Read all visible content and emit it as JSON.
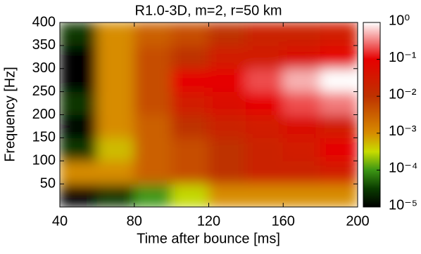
{
  "chart_data": {
    "type": "heatmap",
    "title": "R1.0-3D, m=2, r=50 km",
    "x_label": "Time after bounce [ms]",
    "y_label": "Frequency [Hz]",
    "x": [
      50,
      70,
      90,
      110,
      130,
      150,
      170,
      190
    ],
    "y": [
      25,
      75,
      125,
      175,
      225,
      275,
      325,
      375
    ],
    "z": [
      [
        1e-05,
        3e-05,
        0.0001,
        0.0003,
        0.001,
        0.001,
        0.001,
        0.001
      ],
      [
        0.001,
        0.001,
        0.003,
        0.005,
        0.01,
        0.02,
        0.02,
        0.03
      ],
      [
        3e-05,
        0.0005,
        0.003,
        0.005,
        0.01,
        0.02,
        0.03,
        0.1
      ],
      [
        1e-05,
        0.001,
        0.003,
        0.01,
        0.02,
        0.03,
        0.05,
        0.03
      ],
      [
        3e-05,
        0.001,
        0.005,
        0.03,
        0.05,
        0.1,
        0.2,
        0.3
      ],
      [
        1e-05,
        0.001,
        0.005,
        0.1,
        0.1,
        0.2,
        0.5,
        1
      ],
      [
        1e-05,
        0.001,
        0.005,
        0.01,
        0.03,
        0.03,
        0.05,
        0.1
      ],
      [
        3e-05,
        0.001,
        0.003,
        0.005,
        0.01,
        0.02,
        0.02,
        0.03
      ]
    ],
    "xlim": [
      40,
      200
    ],
    "xticks": [
      40,
      80,
      120,
      160,
      200
    ],
    "ylim": [
      0,
      400
    ],
    "yticks": [
      50,
      100,
      150,
      200,
      250,
      300,
      350,
      400
    ],
    "zlim": [
      1e-05,
      1
    ],
    "zlog": true,
    "zticks": [
      {
        "value": 1e-05,
        "label": "10⁻⁵"
      },
      {
        "value": 0.0001,
        "label": "10⁻⁴"
      },
      {
        "value": 0.001,
        "label": "10⁻³"
      },
      {
        "value": 0.01,
        "label": "10⁻²"
      },
      {
        "value": 0.1,
        "label": "10⁻¹"
      },
      {
        "value": 1,
        "label": "10⁰"
      }
    ]
  }
}
